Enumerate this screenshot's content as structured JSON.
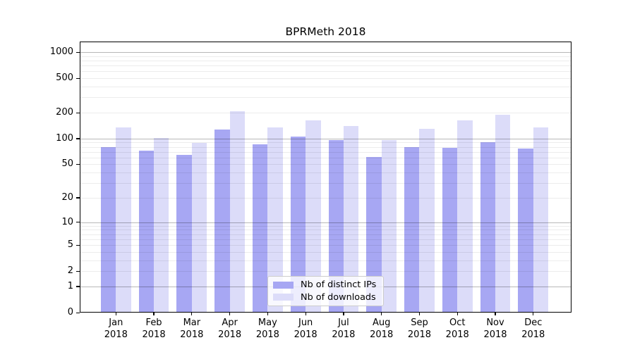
{
  "title": "BPRMeth 2018",
  "chart_data": {
    "type": "bar",
    "title": "BPRMeth 2018",
    "categories": [
      "Jan",
      "Feb",
      "Mar",
      "Apr",
      "May",
      "Jun",
      "Jul",
      "Aug",
      "Sep",
      "Oct",
      "Nov",
      "Dec"
    ],
    "x_year_label": "2018",
    "series": [
      {
        "name": "Nb of distinct IPs",
        "color": "#a7a7f3",
        "values": [
          80,
          73,
          65,
          128,
          86,
          105,
          96,
          61,
          79,
          78,
          90,
          77
        ]
      },
      {
        "name": "Nb of downloads",
        "color": "#dcdcf9",
        "values": [
          135,
          102,
          89,
          209,
          135,
          163,
          140,
          96,
          129,
          163,
          190,
          135
        ]
      }
    ],
    "xlabel": "",
    "ylabel": "",
    "y_ticks": [
      0,
      1,
      2,
      5,
      10,
      20,
      50,
      100,
      200,
      500,
      1000
    ],
    "y_scale": "log10(value+1)",
    "ylim": [
      0,
      1320
    ],
    "grid": "horizontal major+minor, drawn over bars",
    "legend_position": "lower center"
  }
}
